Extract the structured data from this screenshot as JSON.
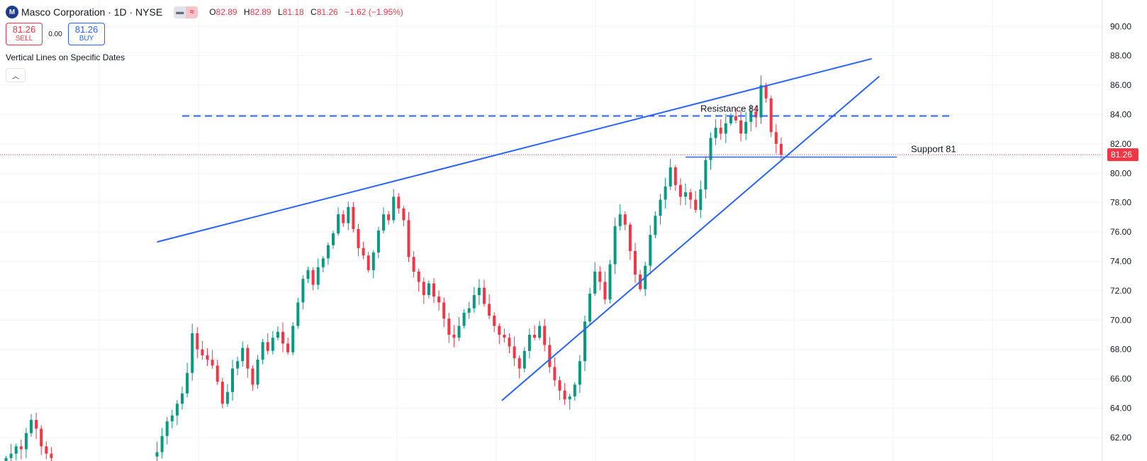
{
  "header": {
    "logo_text": "M",
    "symbol_title": "Masco Corporation · 1D · NYSE",
    "chip_icons": [
      "minus-icon",
      "wave-icon"
    ],
    "ohlc": {
      "o_label": "O",
      "o_value": "82.89",
      "h_label": "H",
      "h_value": "82.89",
      "l_label": "L",
      "l_value": "81.18",
      "c_label": "C",
      "c_value": "81.26",
      "change": "−1.62 (−1.95%)"
    }
  },
  "trade": {
    "sell_price": "81.26",
    "sell_label": "SELL",
    "spread": "0.00",
    "buy_price": "81.26",
    "buy_label": "BUY"
  },
  "indicator": {
    "label": "Vertical Lines on Specific Dates",
    "collapse_icon": "chevron-up-icon"
  },
  "colors": {
    "up": "#089981",
    "down": "#f23645",
    "drawing": "#2962ff",
    "grid": "#f0f3fa",
    "price_line": "#f23645"
  },
  "chart_data": {
    "type": "candlestick",
    "y_axis": {
      "ticks": [
        "62.00",
        "64.00",
        "66.00",
        "68.00",
        "70.00",
        "72.00",
        "74.00",
        "76.00",
        "78.00",
        "80.00",
        "82.00",
        "84.00",
        "86.00",
        "88.00",
        "90.00"
      ],
      "ylim": [
        60.4,
        91.8
      ],
      "position": "right"
    },
    "current_price": {
      "value": 81.26,
      "label": "81.26"
    },
    "series": [
      {
        "name": "",
        "segments": [
          {
            "from": 0,
            "values": [
              60.6,
              60.9,
              61.4,
              61.2,
              62.3,
              63.2,
              62.6,
              61.4,
              60.9,
              60.6
            ]
          },
          {
            "from": 30,
            "values": [
              61.0,
              62.1,
              63.1,
              63.5,
              64.3,
              65.0,
              66.4,
              69.1,
              68.0,
              67.6,
              67.3,
              66.9,
              65.8,
              64.3,
              65.1,
              66.7,
              67.2,
              68.1,
              66.7,
              65.6,
              67.3,
              68.5,
              67.9,
              68.8,
              69.2,
              68.4,
              67.8,
              69.6,
              71.2,
              72.8,
              73.4,
              72.4,
              73.6,
              74.2,
              75.1,
              75.9,
              77.2,
              76.6,
              77.7,
              76.2,
              74.9,
              74.4,
              73.4,
              74.6,
              76.1,
              77.2,
              76.8,
              78.4,
              77.6,
              76.8,
              74.3,
              73.3,
              72.6,
              71.7,
              72.5,
              71.6,
              71.2,
              70.1,
              69.0,
              68.8,
              69.6,
              70.5,
              70.8,
              71.7,
              72.2,
              71.1,
              70.3,
              69.6,
              69.0,
              68.8,
              68.2,
              67.4,
              66.7,
              67.9,
              69.0,
              68.8,
              69.6,
              68.3,
              66.8,
              65.9,
              65.2,
              64.6,
              64.8,
              65.6,
              67.2,
              69.9,
              71.8,
              73.3,
              72.6,
              71.4,
              73.8,
              76.4,
              77.2,
              76.5,
              74.7,
              73.1,
              72.1,
              73.7,
              75.8,
              77.1,
              78.2,
              79.1,
              80.4,
              79.2,
              78.4,
              78.7,
              78.2,
              77.5,
              78.9,
              80.9,
              82.4,
              83.1,
              82.7,
              83.4,
              83.9,
              83.6,
              82.7,
              83.5,
              84.2,
              83.8,
              86.0,
              85.1,
              82.8,
              82.0,
              81.26
            ]
          }
        ]
      }
    ],
    "drawings": [
      {
        "kind": "trend",
        "x1": 30.0,
        "y1": 75.32,
        "x2": 172.0,
        "y2": 87.8
      },
      {
        "kind": "trend",
        "x1": 98.5,
        "y1": 64.52,
        "x2": 173.5,
        "y2": 86.6
      },
      {
        "kind": "horizontal-dashed",
        "x1": 35.0,
        "x2": 188.0,
        "y": 83.9,
        "label": "Resistance 84"
      },
      {
        "kind": "horizontal",
        "x1": 135.0,
        "x2": 177.0,
        "y": 81.1,
        "label": "Support 81"
      }
    ]
  }
}
